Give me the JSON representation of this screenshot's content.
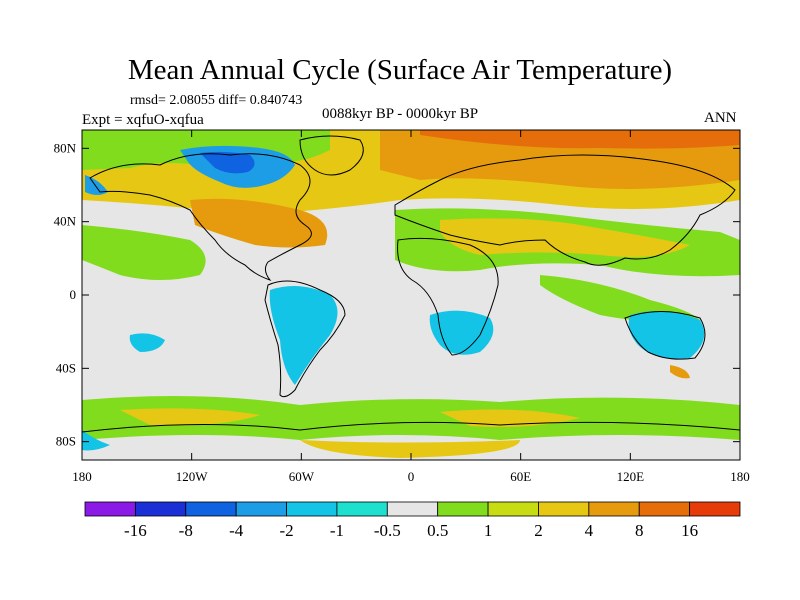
{
  "header": {
    "title": "Mean Annual Cycle (Surface Air Temperature)",
    "stats": "rmsd= 2.08055  diff= 0.840743",
    "experiment": "Expt = xqfuO-xqfua",
    "period": "0088kyr BP - 0000kyr BP",
    "season": "ANN"
  },
  "axes": {
    "y_ticks": [
      {
        "label": "80N",
        "lat": 80
      },
      {
        "label": "40N",
        "lat": 40
      },
      {
        "label": "0",
        "lat": 0
      },
      {
        "label": "40S",
        "lat": -40
      },
      {
        "label": "80S",
        "lat": -80
      }
    ],
    "x_ticks": [
      {
        "label": "180",
        "lon": -180
      },
      {
        "label": "120W",
        "lon": -120
      },
      {
        "label": "60W",
        "lon": -60
      },
      {
        "label": "0",
        "lon": 0
      },
      {
        "label": "60E",
        "lon": 60
      },
      {
        "label": "120E",
        "lon": 120
      },
      {
        "label": "180",
        "lon": 180
      }
    ]
  },
  "colorbar": {
    "colors": [
      "#8b1ae6",
      "#1a2fd6",
      "#0f62e0",
      "#1d9de6",
      "#14c4e6",
      "#1ee0cf",
      "#e6e6e6",
      "#82dc1e",
      "#c8dc14",
      "#e6c814",
      "#e69b0f",
      "#e66e0a",
      "#e63c0a"
    ],
    "labels": [
      "-16",
      "-8",
      "-4",
      "-2",
      "-1",
      "-0.5",
      "0.5",
      "1",
      "2",
      "4",
      "8",
      "16"
    ]
  }
}
